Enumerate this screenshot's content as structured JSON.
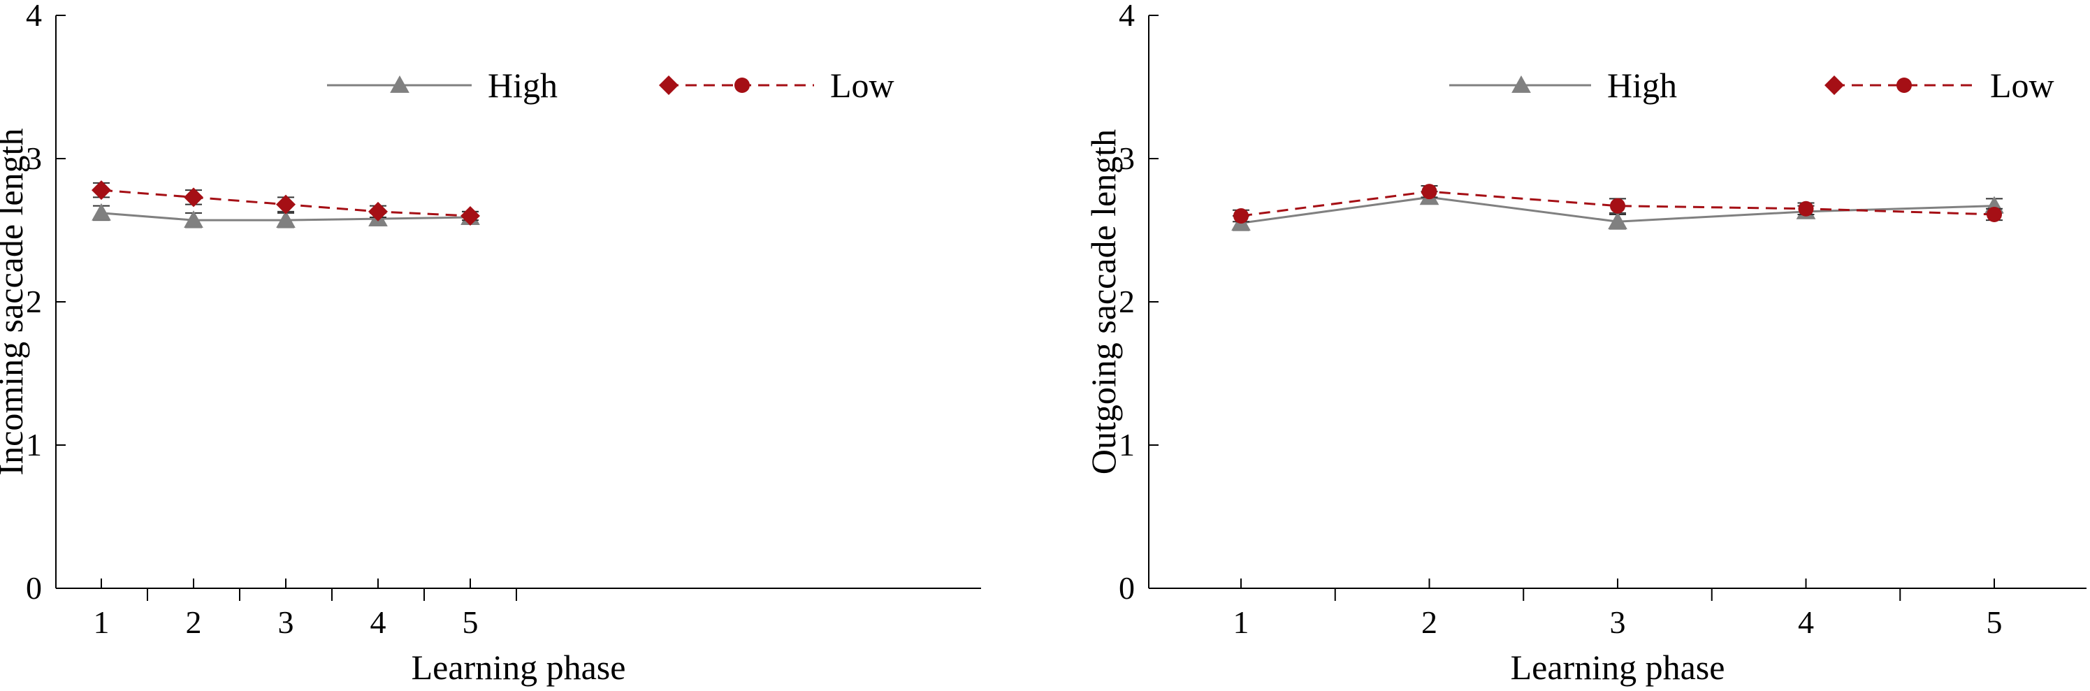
{
  "chart_data": [
    {
      "type": "line",
      "xlabel": "Learning phase",
      "ylabel": "Incoming saccade length",
      "x": [
        1,
        2,
        3,
        4,
        5
      ],
      "xticks": [
        "1",
        "2",
        "3",
        "4",
        "5"
      ],
      "ylim": [
        0,
        4
      ],
      "yticks": [
        "0",
        "1",
        "2",
        "3",
        "4"
      ],
      "grid": false,
      "legend": "top",
      "series": [
        {
          "name": "High",
          "values": [
            2.62,
            2.57,
            2.57,
            2.58,
            2.59
          ],
          "error": [
            0.05,
            0.05,
            0.05,
            0.04,
            0.04
          ],
          "color": "#808080",
          "marker": "triangle",
          "line": "solid"
        },
        {
          "name": "Low",
          "values": [
            2.78,
            2.73,
            2.68,
            2.63,
            2.6
          ],
          "error": [
            0.05,
            0.05,
            0.05,
            0.04,
            0.03
          ],
          "color": "#a50f15",
          "marker": "diamond",
          "line": "dashed"
        }
      ],
      "legend_items": [
        {
          "label": "High",
          "markers": [
            "triangle"
          ],
          "color": "#808080",
          "line": "solid"
        },
        {
          "label": "Low",
          "markers": [
            "diamond",
            "circle"
          ],
          "color": "#a50f15",
          "line": "dashed"
        }
      ]
    },
    {
      "type": "line",
      "xlabel": "Learning phase",
      "ylabel": "Outgoing saccade length",
      "x": [
        1,
        2,
        3,
        4,
        5
      ],
      "xticks": [
        "1",
        "2",
        "3",
        "4",
        "5"
      ],
      "ylim": [
        0,
        4
      ],
      "yticks": [
        "0",
        "1",
        "2",
        "3",
        "4"
      ],
      "grid": false,
      "legend": "top",
      "series": [
        {
          "name": "High",
          "values": [
            2.55,
            2.73,
            2.56,
            2.63,
            2.67
          ],
          "error": [
            0.05,
            0.04,
            0.05,
            0.04,
            0.05
          ],
          "color": "#808080",
          "marker": "triangle",
          "line": "solid"
        },
        {
          "name": "Low",
          "values": [
            2.6,
            2.77,
            2.67,
            2.65,
            2.61
          ],
          "error": [
            0.04,
            0.04,
            0.05,
            0.04,
            0.04
          ],
          "color": "#a50f15",
          "marker": "circle",
          "line": "dashed"
        }
      ],
      "legend_items": [
        {
          "label": "High",
          "markers": [
            "triangle"
          ],
          "color": "#808080",
          "line": "solid"
        },
        {
          "label": "Low",
          "markers": [
            "diamond",
            "circle"
          ],
          "color": "#a50f15",
          "line": "dashed"
        }
      ]
    }
  ]
}
